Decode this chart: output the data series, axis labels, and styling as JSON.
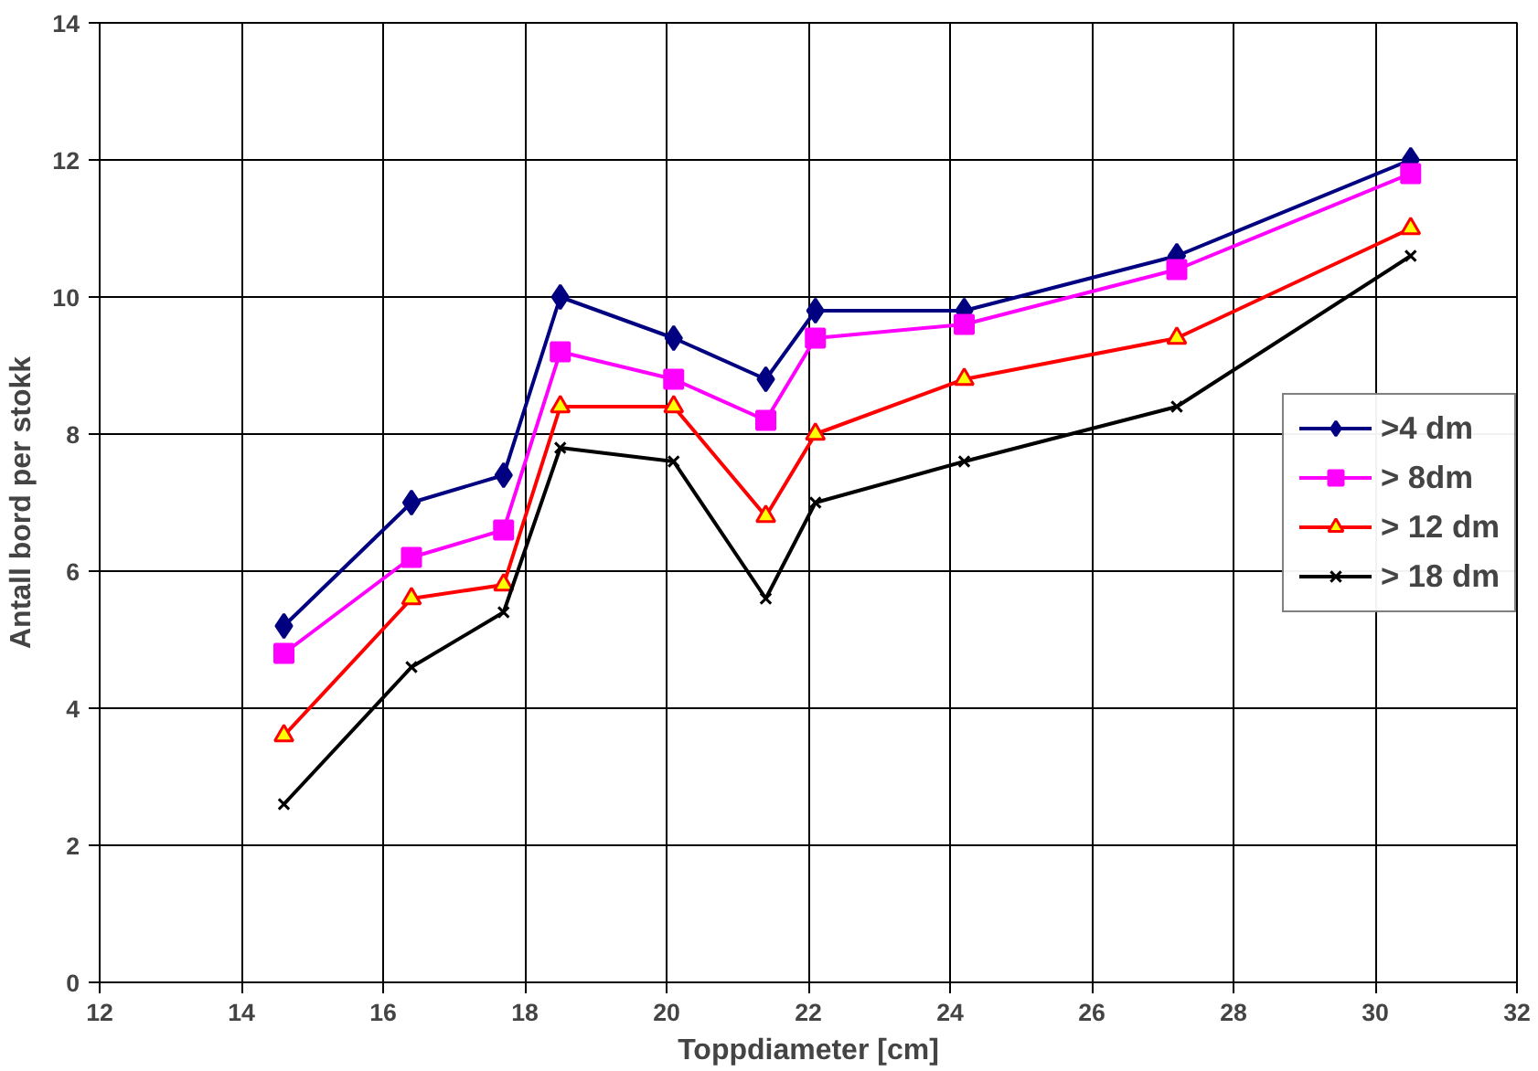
{
  "chart_data": {
    "type": "line",
    "xlabel": "Toppdiameter [cm]",
    "ylabel": "Antall bord per stokk",
    "x": [
      14.6,
      16.4,
      17.7,
      18.5,
      20.1,
      21.4,
      22.1,
      24.2,
      27.2,
      30.5
    ],
    "series": [
      {
        "name": ">4 dm",
        "color": "#000080",
        "marker": "diamond",
        "values": [
          5.2,
          7.0,
          7.4,
          10.0,
          9.4,
          8.8,
          9.8,
          9.8,
          10.6,
          12.0
        ]
      },
      {
        "name": "> 8dm",
        "color": "#ff00ff",
        "marker": "square",
        "values": [
          4.8,
          6.2,
          6.6,
          9.2,
          8.8,
          8.2,
          9.4,
          9.6,
          10.4,
          11.8
        ]
      },
      {
        "name": "> 12 dm",
        "color": "#ff0000",
        "marker": "triangle",
        "values": [
          3.6,
          5.6,
          5.8,
          8.4,
          8.4,
          6.8,
          8.0,
          8.8,
          9.4,
          11.0
        ]
      },
      {
        "name": "> 18 dm",
        "color": "#000000",
        "marker": "cross",
        "values": [
          2.6,
          4.6,
          5.4,
          7.8,
          7.6,
          5.6,
          7.0,
          7.6,
          8.4,
          10.6
        ]
      }
    ],
    "xlim": [
      12,
      32
    ],
    "xticks": [
      12,
      14,
      16,
      18,
      20,
      22,
      24,
      26,
      28,
      30,
      32
    ],
    "ylim": [
      0,
      14
    ],
    "yticks": [
      0,
      2,
      4,
      6,
      8,
      10,
      12,
      14
    ],
    "grid": true,
    "legend": "right",
    "line_style": "solid"
  }
}
